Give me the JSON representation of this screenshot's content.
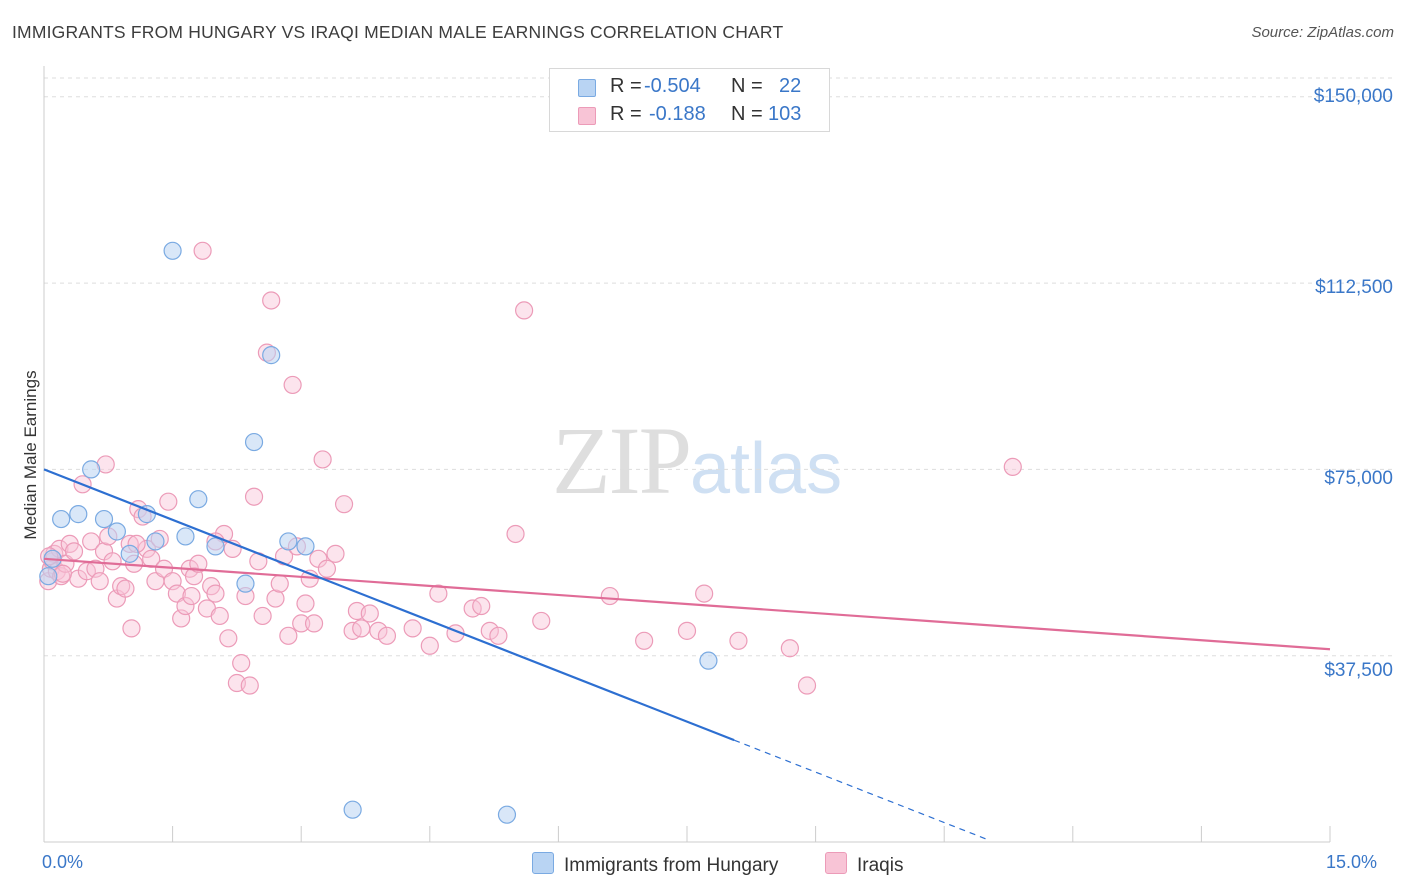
{
  "header": {
    "title": "IMMIGRANTS FROM HUNGARY VS IRAQI MEDIAN MALE EARNINGS CORRELATION CHART",
    "source": "Source: ZipAtlas.com"
  },
  "watermark": {
    "zip": "ZIP",
    "atlas": "atlas"
  },
  "legend": {
    "series1": {
      "r_label": "R =",
      "r_value": "-0.504",
      "n_label": "N =",
      "n_value": "22"
    },
    "series2": {
      "r_label": "R =",
      "r_value": "-0.188",
      "n_label": "N =",
      "n_value": "103"
    }
  },
  "bottom_legend": {
    "series1": "Immigrants from Hungary",
    "series2": "Iraqis"
  },
  "colors": {
    "blue_fill": "#b9d4f3",
    "blue_stroke": "#7aaae2",
    "blue_line": "#2d6fd1",
    "pink_fill": "#f8c4d6",
    "pink_stroke": "#ec9bb8",
    "pink_line": "#e06c97",
    "accent_text": "#3a77c8",
    "grid": "#dddddd"
  },
  "chart_data": {
    "type": "scatter",
    "title": "IMMIGRANTS FROM HUNGARY VS IRAQI MEDIAN MALE EARNINGS CORRELATION CHART",
    "xlabel": "",
    "ylabel": "Median Male Earnings",
    "xlim": [
      0,
      15
    ],
    "ylim": [
      0,
      157000
    ],
    "x_tick_labels": [
      "0.0%",
      "15.0%"
    ],
    "y_ticks": [
      37500,
      75000,
      112500,
      150000
    ],
    "y_tick_labels": [
      "$37,500",
      "$75,000",
      "$112,500",
      "$150,000"
    ],
    "grid": true,
    "legend_position": "top-center",
    "series": [
      {
        "name": "Immigrants from Hungary",
        "points": [
          [
            0.05,
            53500
          ],
          [
            0.1,
            57000
          ],
          [
            0.2,
            65000
          ],
          [
            0.4,
            66000
          ],
          [
            0.55,
            75000
          ],
          [
            0.7,
            65000
          ],
          [
            0.85,
            62500
          ],
          [
            1.0,
            58000
          ],
          [
            1.2,
            66000
          ],
          [
            1.3,
            60500
          ],
          [
            1.5,
            119000
          ],
          [
            1.65,
            61500
          ],
          [
            1.8,
            69000
          ],
          [
            2.0,
            59500
          ],
          [
            2.35,
            52000
          ],
          [
            2.45,
            80500
          ],
          [
            2.65,
            98000
          ],
          [
            2.85,
            60500
          ],
          [
            3.05,
            59500
          ],
          [
            3.6,
            6500
          ],
          [
            5.4,
            5500
          ],
          [
            7.75,
            36500
          ]
        ],
        "trend": {
          "x0": 0.0,
          "y0": 75000,
          "x1": 8.05,
          "y1": 20500,
          "dashed_to_x": 11.0
        }
      },
      {
        "name": "Iraqis",
        "points": [
          [
            0.05,
            52500
          ],
          [
            0.08,
            55000
          ],
          [
            0.1,
            56500
          ],
          [
            0.12,
            58000
          ],
          [
            0.15,
            54500
          ],
          [
            0.18,
            59000
          ],
          [
            0.2,
            53500
          ],
          [
            0.25,
            56000
          ],
          [
            0.3,
            60000
          ],
          [
            0.35,
            58500
          ],
          [
            0.4,
            53000
          ],
          [
            0.45,
            72000
          ],
          [
            0.5,
            54500
          ],
          [
            0.55,
            60500
          ],
          [
            0.6,
            55000
          ],
          [
            0.65,
            52500
          ],
          [
            0.7,
            58500
          ],
          [
            0.72,
            76000
          ],
          [
            0.75,
            61500
          ],
          [
            0.8,
            56500
          ],
          [
            0.85,
            49000
          ],
          [
            0.9,
            51500
          ],
          [
            0.95,
            51000
          ],
          [
            1.0,
            60000
          ],
          [
            1.02,
            43000
          ],
          [
            1.05,
            56000
          ],
          [
            1.1,
            67000
          ],
          [
            1.15,
            65500
          ],
          [
            1.2,
            59000
          ],
          [
            1.25,
            57000
          ],
          [
            1.3,
            52500
          ],
          [
            1.35,
            61000
          ],
          [
            1.4,
            55000
          ],
          [
            1.45,
            68500
          ],
          [
            1.5,
            52500
          ],
          [
            1.55,
            50000
          ],
          [
            1.6,
            45000
          ],
          [
            1.65,
            47500
          ],
          [
            1.7,
            55000
          ],
          [
            1.72,
            49500
          ],
          [
            1.75,
            53500
          ],
          [
            1.8,
            56000
          ],
          [
            1.85,
            119000
          ],
          [
            1.9,
            47000
          ],
          [
            1.95,
            51500
          ],
          [
            2.0,
            50000
          ],
          [
            2.05,
            45500
          ],
          [
            2.1,
            62000
          ],
          [
            2.15,
            41000
          ],
          [
            2.2,
            59000
          ],
          [
            2.25,
            32000
          ],
          [
            2.3,
            36000
          ],
          [
            2.35,
            49500
          ],
          [
            2.4,
            31500
          ],
          [
            2.45,
            69500
          ],
          [
            2.5,
            56500
          ],
          [
            2.55,
            45500
          ],
          [
            2.6,
            98500
          ],
          [
            2.65,
            109000
          ],
          [
            2.7,
            49000
          ],
          [
            2.75,
            52000
          ],
          [
            2.8,
            57500
          ],
          [
            2.85,
            41500
          ],
          [
            2.9,
            92000
          ],
          [
            2.95,
            59500
          ],
          [
            3.0,
            44000
          ],
          [
            3.05,
            48000
          ],
          [
            3.1,
            53000
          ],
          [
            3.15,
            44000
          ],
          [
            3.2,
            57000
          ],
          [
            3.25,
            77000
          ],
          [
            3.3,
            55000
          ],
          [
            3.5,
            68000
          ],
          [
            3.6,
            42500
          ],
          [
            3.65,
            46500
          ],
          [
            3.7,
            43000
          ],
          [
            3.8,
            46000
          ],
          [
            3.9,
            42500
          ],
          [
            4.0,
            41500
          ],
          [
            4.3,
            43000
          ],
          [
            4.5,
            39500
          ],
          [
            4.6,
            50000
          ],
          [
            4.8,
            42000
          ],
          [
            5.0,
            47000
          ],
          [
            5.1,
            47500
          ],
          [
            5.2,
            42500
          ],
          [
            5.3,
            41500
          ],
          [
            5.5,
            62000
          ],
          [
            5.6,
            107000
          ],
          [
            5.8,
            44500
          ],
          [
            6.6,
            49500
          ],
          [
            7.0,
            40500
          ],
          [
            7.5,
            42500
          ],
          [
            7.7,
            50000
          ],
          [
            8.1,
            40500
          ],
          [
            8.7,
            39000
          ],
          [
            8.9,
            31500
          ],
          [
            11.3,
            75500
          ],
          [
            0.06,
            57500
          ],
          [
            0.22,
            54000
          ],
          [
            1.08,
            60000
          ],
          [
            3.4,
            58000
          ],
          [
            2.0,
            60500
          ]
        ],
        "trend": {
          "x0": 0.0,
          "y0": 57000,
          "x1": 15.0,
          "y1": 38800
        }
      }
    ]
  }
}
